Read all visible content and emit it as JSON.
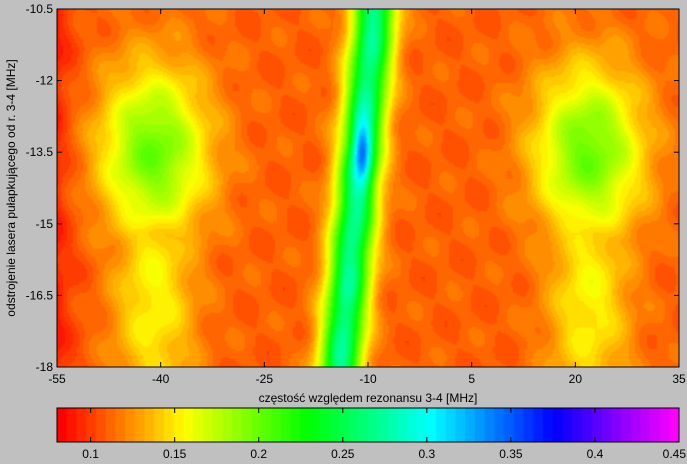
{
  "chart_data": {
    "type": "heatmap",
    "title": "",
    "xlabel": "częstość względem rezonansu 3-4 [MHz]",
    "ylabel": "odstrojenie lasera pułapkującego od r. 3-4 [MHz]",
    "xlim": [
      -55,
      35
    ],
    "ylim": [
      -18,
      -10.5
    ],
    "x_ticks": [
      "-55",
      "-40",
      "-25",
      "-10",
      "5",
      "20",
      "35"
    ],
    "y_ticks": [
      "-10.5",
      "-12",
      "-13.5",
      "-15",
      "-16.5",
      "-18"
    ],
    "colorbar": {
      "range": [
        0.08,
        0.45
      ],
      "ticks": [
        "0.1",
        "0.15",
        "0.2",
        "0.25",
        "0.3",
        "0.35",
        "0.4",
        "0.45"
      ],
      "colormap": "hsv"
    },
    "background_level": 0.11,
    "features": [
      {
        "name": "central resonance line",
        "x_at_top": -9.0,
        "x_at_bottom": -14.0,
        "width_mhz": 2.2,
        "peak_value": 0.27
      },
      {
        "name": "central peak",
        "x": -10.8,
        "y": -13.5,
        "peak_value": 0.35
      },
      {
        "name": "left lobe",
        "x": -41.0,
        "y": -13.5,
        "peak_value": 0.2
      },
      {
        "name": "right lobe",
        "x": 22.0,
        "y": -13.5,
        "peak_value": 0.2
      }
    ]
  }
}
